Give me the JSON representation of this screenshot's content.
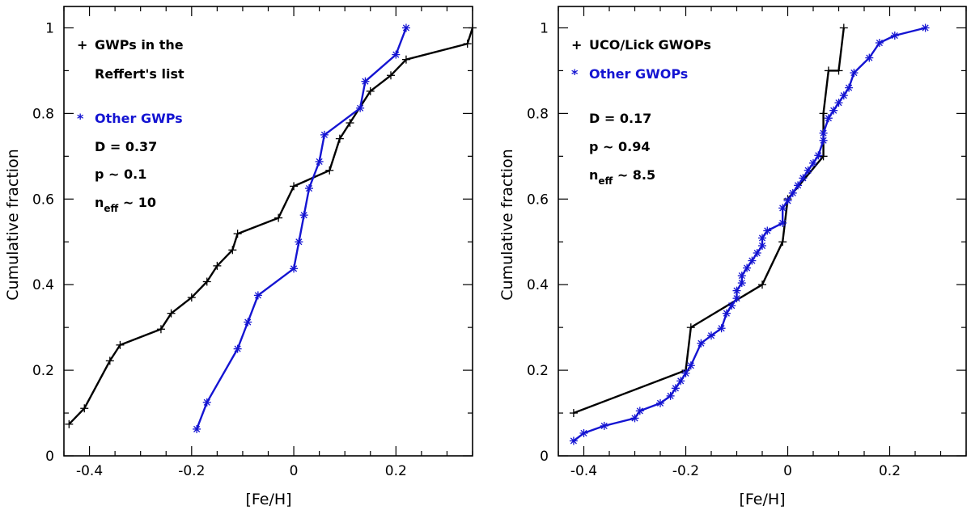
{
  "chart_data": [
    {
      "type": "line",
      "xlabel": "[Fe/H]",
      "ylabel": "Cumulative fraction",
      "xlim": [
        -0.45,
        0.35
      ],
      "ylim": [
        0,
        1.05
      ],
      "xticks": [
        "-0.4",
        "-0.2",
        "0",
        "0.2"
      ],
      "yticks": [
        "0",
        "0.2",
        "0.4",
        "0.6",
        "0.8",
        "1"
      ],
      "legend": {
        "black_marker": "+",
        "black_line1": "GWPs in the",
        "black_line2": "Reffert's list",
        "blue_marker": "*",
        "blue_label": "Other GWPs",
        "stat_D": "D = 0.37",
        "stat_p": "p ~ 0.1",
        "stat_n_main": "n",
        "stat_n_sub": "eff",
        "stat_n_rest": " ~ 10"
      },
      "series": [
        {
          "name": "GWPs in the Reffert's list",
          "color": "#000000",
          "marker": "plus",
          "x": [
            -0.44,
            -0.41,
            -0.36,
            -0.34,
            -0.26,
            -0.24,
            -0.2,
            -0.17,
            -0.15,
            -0.12,
            -0.11,
            -0.03,
            0.0,
            0.07,
            0.09,
            0.11,
            0.15,
            0.19,
            0.22,
            0.34,
            0.35
          ],
          "y": [
            0.074,
            0.111,
            0.222,
            0.259,
            0.296,
            0.333,
            0.37,
            0.407,
            0.444,
            0.481,
            0.519,
            0.556,
            0.63,
            0.667,
            0.741,
            0.778,
            0.852,
            0.889,
            0.926,
            0.963,
            1.0
          ]
        },
        {
          "name": "Other GWPs",
          "color": "#1414d2",
          "marker": "star",
          "x": [
            -0.19,
            -0.17,
            -0.11,
            -0.09,
            -0.07,
            0.0,
            0.01,
            0.02,
            0.03,
            0.05,
            0.06,
            0.13,
            0.14,
            0.2,
            0.22
          ],
          "y": [
            0.0625,
            0.125,
            0.25,
            0.3125,
            0.375,
            0.4375,
            0.5,
            0.5625,
            0.625,
            0.6875,
            0.75,
            0.8125,
            0.875,
            0.9375,
            1.0
          ]
        }
      ]
    },
    {
      "type": "line",
      "xlabel": "[Fe/H]",
      "ylabel": "Cumulative fraction",
      "xlim": [
        -0.45,
        0.35
      ],
      "ylim": [
        0,
        1.05
      ],
      "xticks": [
        "-0.4",
        "-0.2",
        "0",
        "0.2"
      ],
      "yticks": [
        "0",
        "0.2",
        "0.4",
        "0.6",
        "0.8",
        "1"
      ],
      "legend": {
        "black_marker": "+",
        "black_line1": "UCO/Lick GWOPs",
        "black_line2": "",
        "blue_marker": "*",
        "blue_label": "Other GWOPs",
        "stat_D": "D = 0.17",
        "stat_p": "p ~ 0.94",
        "stat_n_main": "n",
        "stat_n_sub": "eff",
        "stat_n_rest": " ~ 8.5"
      },
      "series": [
        {
          "name": "UCO/Lick GWOPs",
          "color": "#000000",
          "marker": "plus",
          "x": [
            -0.42,
            -0.2,
            -0.19,
            -0.05,
            -0.01,
            0.0,
            0.07,
            0.07,
            0.08,
            0.1,
            0.11
          ],
          "y": [
            0.1,
            0.2,
            0.3,
            0.4,
            0.5,
            0.6,
            0.7,
            0.8,
            0.9,
            0.9,
            1.0
          ]
        },
        {
          "name": "Other GWOPs",
          "color": "#1414d2",
          "marker": "star",
          "x": [
            -0.42,
            -0.4,
            -0.36,
            -0.3,
            -0.29,
            -0.25,
            -0.23,
            -0.22,
            -0.21,
            -0.2,
            -0.19,
            -0.17,
            -0.15,
            -0.13,
            -0.12,
            -0.11,
            -0.1,
            -0.1,
            -0.09,
            -0.09,
            -0.08,
            -0.07,
            -0.06,
            -0.05,
            -0.05,
            -0.04,
            -0.01,
            -0.01,
            0.0,
            0.01,
            0.02,
            0.03,
            0.04,
            0.05,
            0.06,
            0.07,
            0.07,
            0.08,
            0.09,
            0.1,
            0.11,
            0.12,
            0.13,
            0.16,
            0.18,
            0.21,
            0.27
          ],
          "y": [
            0.035,
            0.053,
            0.07,
            0.088,
            0.105,
            0.123,
            0.14,
            0.158,
            0.175,
            0.193,
            0.211,
            0.263,
            0.281,
            0.298,
            0.333,
            0.351,
            0.368,
            0.386,
            0.404,
            0.421,
            0.439,
            0.456,
            0.474,
            0.491,
            0.509,
            0.526,
            0.544,
            0.579,
            0.596,
            0.614,
            0.632,
            0.649,
            0.667,
            0.684,
            0.702,
            0.737,
            0.754,
            0.789,
            0.807,
            0.825,
            0.842,
            0.86,
            0.895,
            0.93,
            0.965,
            0.982,
            1.0
          ]
        }
      ]
    }
  ]
}
